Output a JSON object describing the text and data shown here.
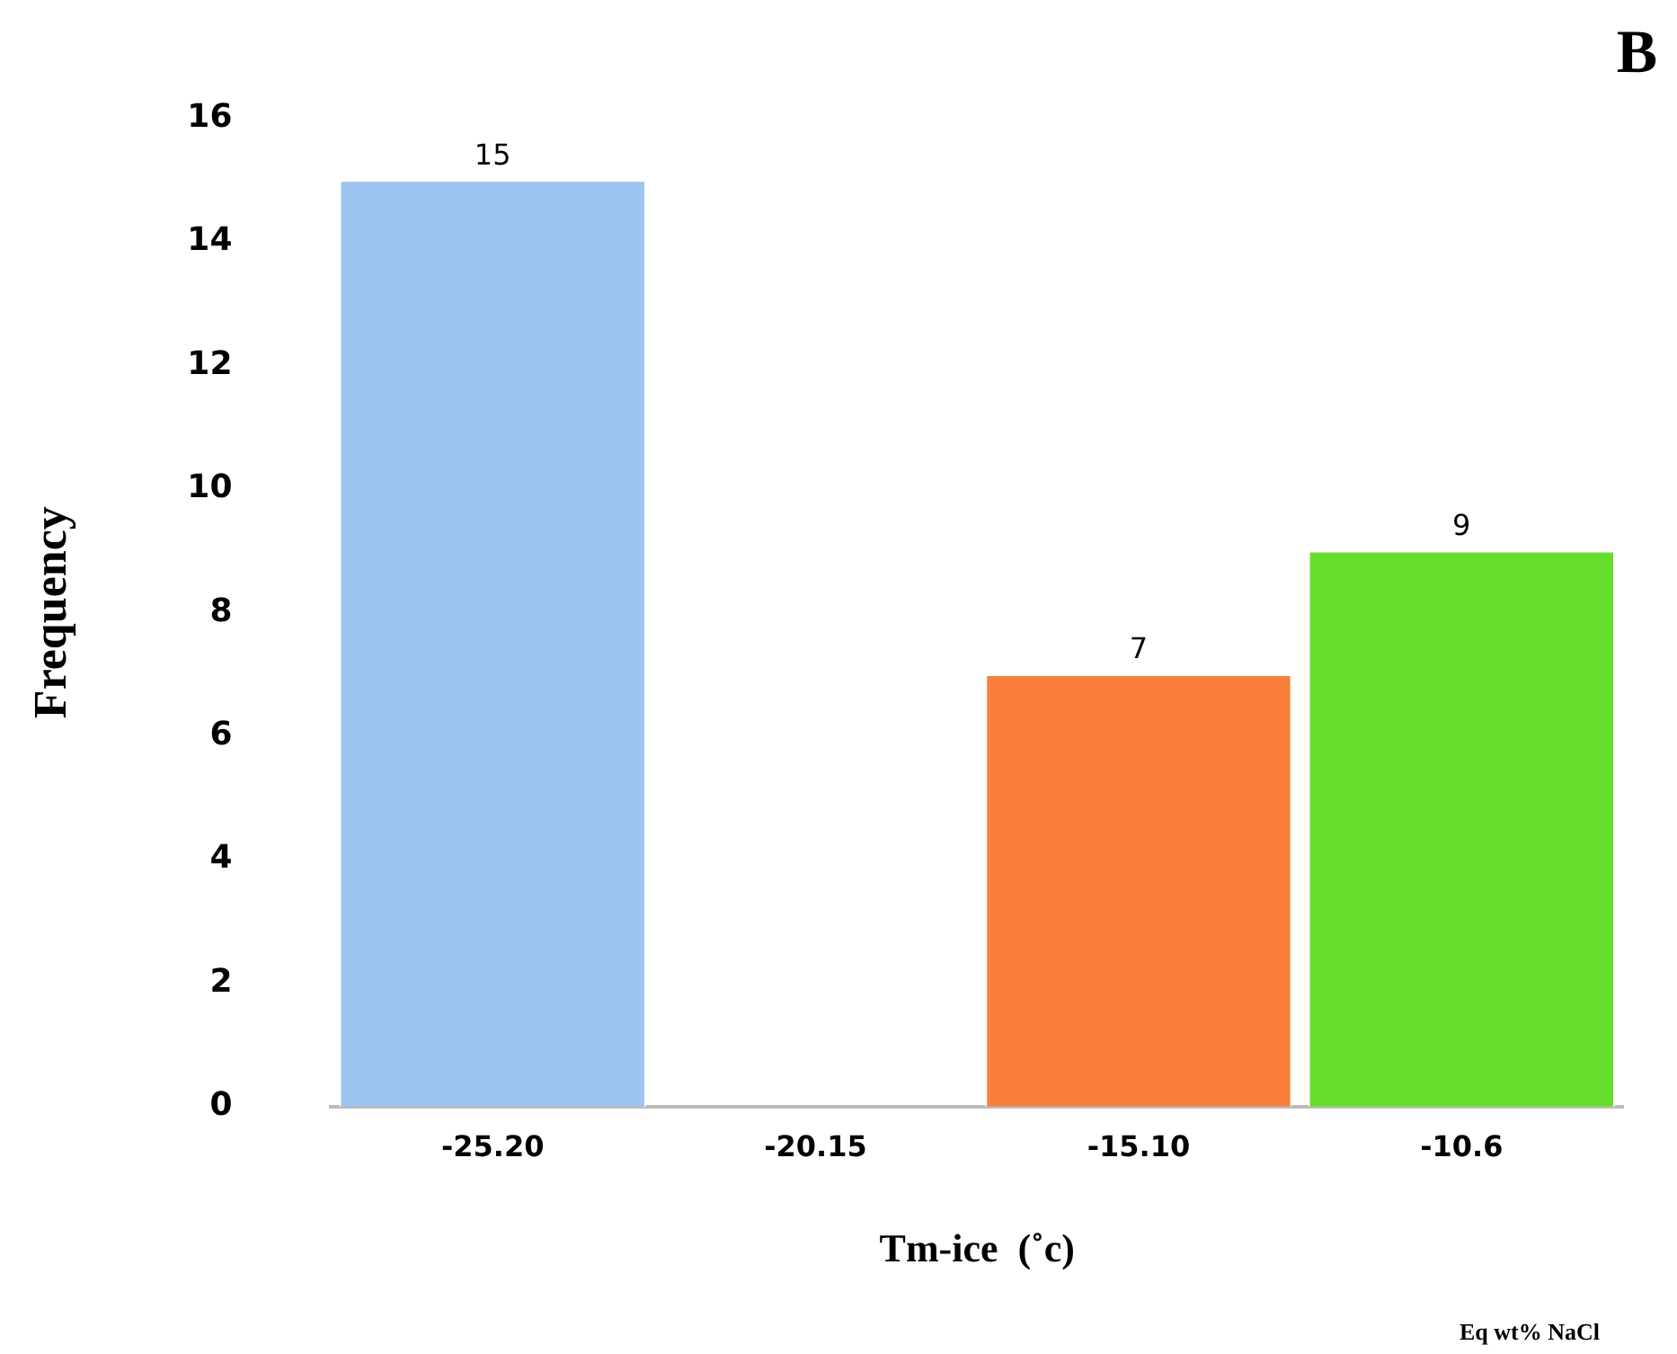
{
  "chart_data": {
    "type": "bar",
    "xlabel": "Tm-ice  (˚c)",
    "ylabel": "Frequency",
    "categories": [
      "-25.20",
      "-20.15",
      "-15.10",
      "-10.6"
    ],
    "values": [
      15,
      0,
      7,
      9
    ],
    "colors": [
      "#9cc4ef",
      "#9cc4ef",
      "#f8803a",
      "#68de2c"
    ],
    "value_labels": [
      "15",
      null,
      "7",
      "9"
    ],
    "ylim": [
      0,
      16
    ],
    "yticks": [
      0,
      2,
      4,
      6,
      8,
      10,
      12,
      14,
      16
    ],
    "grid": false,
    "legend": false,
    "annotations": [
      "B",
      "Eq wt% NaCl"
    ]
  }
}
